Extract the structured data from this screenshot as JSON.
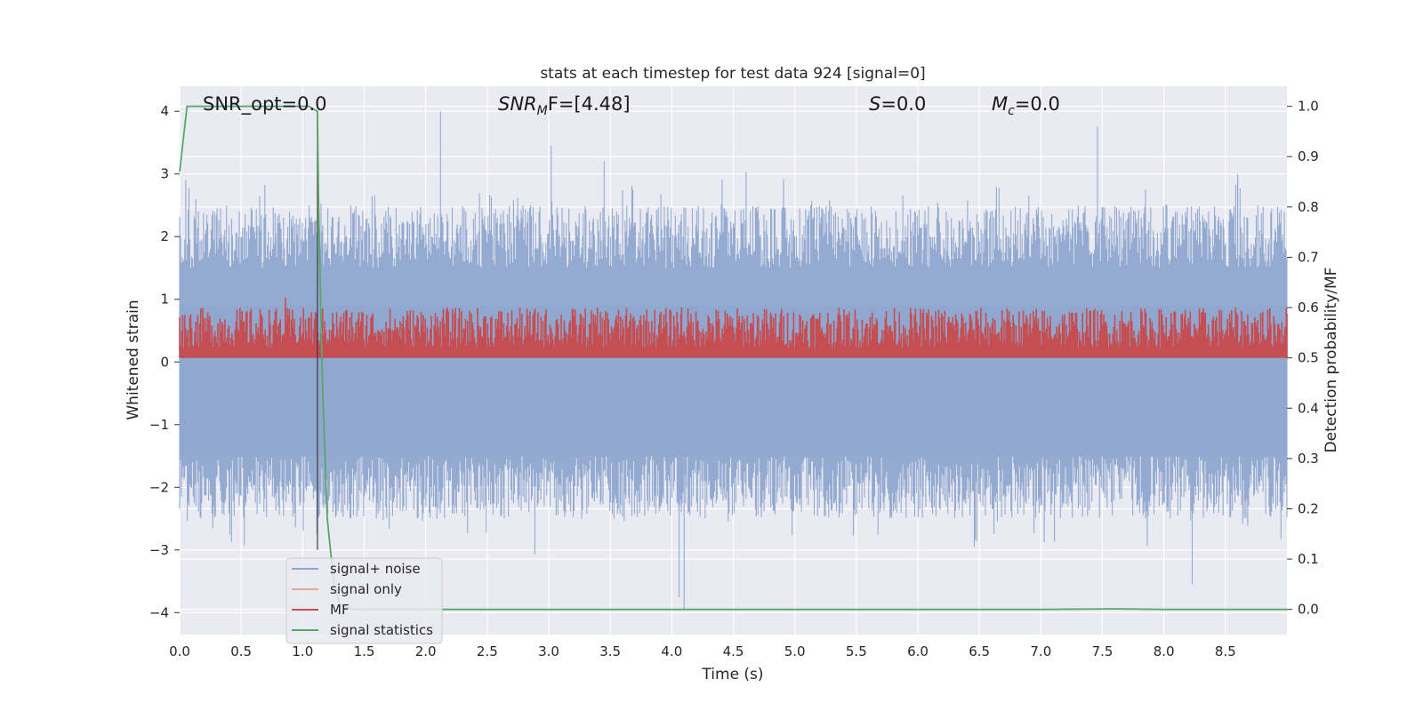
{
  "chart_data": {
    "type": "line",
    "title": "stats at each timestep for test data 924 [signal=0]",
    "xlabel": "Time (s)",
    "ylabel": "Whitened strain",
    "y2label": "Detection probability/MF",
    "xlim": [
      0,
      9.0
    ],
    "ylim": [
      -4.35,
      4.4
    ],
    "y2lim": [
      -0.05,
      1.04
    ],
    "x_ticks": [
      "0.0",
      "0.5",
      "1.0",
      "1.5",
      "2.0",
      "2.5",
      "3.0",
      "3.5",
      "4.0",
      "4.5",
      "5.0",
      "5.5",
      "6.0",
      "6.5",
      "7.0",
      "7.5",
      "8.0",
      "8.5"
    ],
    "y_ticks": [
      "−4",
      "−3",
      "−2",
      "−1",
      "0",
      "1",
      "2",
      "3",
      "4"
    ],
    "y2_ticks": [
      "0.0",
      "0.1",
      "0.2",
      "0.3",
      "0.4",
      "0.5",
      "0.6",
      "0.7",
      "0.8",
      "0.9",
      "1.0"
    ],
    "grid": true,
    "legend_position": "lower-left",
    "annotations": {
      "snr_opt": "SNR_opt=0.0",
      "snr_mf_main": "SNR",
      "snr_mf_sub": "M",
      "snr_mf_tail": "F=[4.48]",
      "s_label": "S",
      "s_value": "=0.0",
      "mc_label": "M",
      "mc_sub": "c",
      "mc_value": "=0.0"
    },
    "series": [
      {
        "name": "signal+ noise",
        "axis": "left",
        "color": "#8fa6cf",
        "kind": "noise-band",
        "x_range": [
          0,
          9.0
        ],
        "approx_upper": [
          1.5,
          2.5
        ],
        "approx_lower": [
          -2.5,
          -1.5
        ],
        "peaks": [
          [
            0.05,
            2.9
          ],
          [
            2.12,
            4.0
          ],
          [
            3.02,
            3.45
          ],
          [
            3.45,
            3.2
          ],
          [
            4.1,
            -3.95
          ],
          [
            4.06,
            -3.75
          ],
          [
            7.46,
            3.75
          ],
          [
            8.23,
            -3.55
          ],
          [
            8.6,
            3.0
          ]
        ]
      },
      {
        "name": "signal only",
        "axis": "left",
        "color": "#e8a88a",
        "values": []
      },
      {
        "name": "MF",
        "axis": "right",
        "color": "#c44e52",
        "kind": "noise-band",
        "x_range": [
          0,
          9.0
        ],
        "baseline": 0.5,
        "approx_peak_range": [
          0.55,
          0.6
        ],
        "peaks": [
          [
            0.86,
            0.62
          ],
          [
            4.08,
            0.6
          ],
          [
            9.0,
            0.6
          ]
        ]
      },
      {
        "name": "signal statistics",
        "axis": "right",
        "color": "#55a868",
        "x": [
          0.0,
          0.06,
          1.05,
          1.12,
          1.13,
          1.16,
          1.2,
          1.25,
          1.3,
          1.4,
          2.0,
          3.0,
          4.0,
          5.0,
          6.0,
          6.7,
          7.0,
          7.6,
          8.0,
          9.0
        ],
        "y": [
          0.87,
          1.0,
          1.0,
          0.99,
          0.8,
          0.45,
          0.18,
          0.06,
          0.01,
          0.0,
          0.0,
          0.0,
          0.0,
          0.0,
          0.0,
          0.0,
          0.0,
          0.001,
          0.0,
          0.0
        ]
      }
    ],
    "vertical_marker_x": 1.12
  }
}
